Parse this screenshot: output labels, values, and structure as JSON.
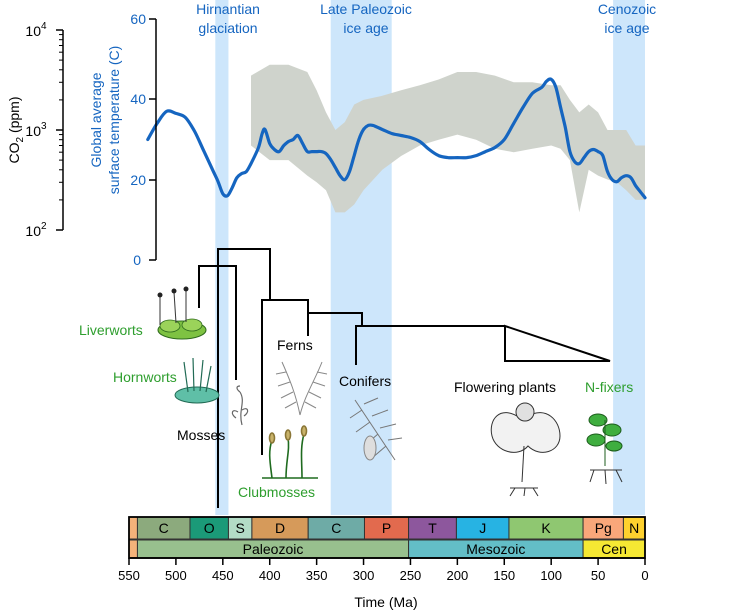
{
  "colors": {
    "temperature": "#1565c0",
    "axis_blue": "#1565c0",
    "co2_band": "#cfd3cc",
    "ice_band": "#cde6fb",
    "bryophyte_label": "#2e9e2e",
    "tree": "#000000"
  },
  "chart_data": [
    {
      "type": "line",
      "title": "",
      "xlabel": "Time (Ma)",
      "xlim": [
        550,
        0
      ],
      "x_ticks": [
        "550",
        "500",
        "450",
        "400",
        "350",
        "300",
        "250",
        "200",
        "150",
        "100",
        "50",
        "0"
      ],
      "grid": false,
      "series": [
        {
          "name": "Global average surface temperature (C)",
          "color": "#1565c0",
          "axis": "right-inner",
          "ylabel": "Global average surface temperature (C)",
          "ylim": [
            0,
            60
          ],
          "y_ticks": [
            "0",
            "20",
            "40",
            "60"
          ],
          "x": [
            530,
            520,
            510,
            500,
            490,
            480,
            470,
            460,
            455,
            450,
            445,
            440,
            435,
            430,
            425,
            420,
            412,
            408,
            405,
            400,
            395,
            390,
            385,
            380,
            375,
            370,
            365,
            360,
            355,
            350,
            345,
            340,
            335,
            330,
            325,
            320,
            315,
            310,
            305,
            300,
            295,
            290,
            280,
            270,
            260,
            250,
            240,
            230,
            220,
            210,
            200,
            190,
            180,
            170,
            160,
            150,
            140,
            130,
            120,
            110,
            105,
            100,
            95,
            90,
            85,
            80,
            75,
            70,
            65,
            60,
            55,
            50,
            45,
            40,
            35,
            30,
            25,
            20,
            15,
            10,
            5,
            0
          ],
          "y": [
            30,
            34,
            37,
            36.5,
            35.5,
            32,
            27,
            22,
            19.5,
            16.5,
            16,
            18,
            20.5,
            21.5,
            22,
            24,
            28,
            31.5,
            32.5,
            29,
            27.5,
            27,
            28.5,
            29.5,
            30,
            31,
            29,
            27,
            27,
            27,
            27,
            26.5,
            25,
            23,
            21,
            20,
            22,
            26,
            30,
            32.5,
            33.5,
            33.5,
            32.5,
            31.5,
            31,
            30.5,
            29.5,
            27.5,
            26,
            25.5,
            25.5,
            25.5,
            26,
            27,
            28,
            30,
            34,
            38,
            41.5,
            43,
            44.5,
            45,
            43,
            38,
            33,
            27,
            24.5,
            24,
            25.5,
            27,
            27.5,
            27,
            26,
            22,
            20,
            19.5,
            20.5,
            21,
            20.5,
            18.5,
            17,
            15.5
          ]
        },
        {
          "name": "CO2 (ppm)",
          "type": "area",
          "color": "#cfd3cc",
          "axis": "left-outer",
          "ylabel": "CO2 (ppm)",
          "scale": "log",
          "ylim": [
            100,
            10000
          ],
          "y_ticks": [
            "10^2",
            "10^3",
            "10^4"
          ],
          "x": [
            420,
            400,
            380,
            360,
            350,
            340,
            330,
            320,
            310,
            300,
            280,
            260,
            240,
            220,
            200,
            180,
            160,
            140,
            120,
            100,
            90,
            80,
            70,
            60,
            50,
            40,
            30,
            20,
            10,
            0
          ],
          "upper": [
            3500,
            4500,
            4500,
            3800,
            2500,
            1500,
            1000,
            1200,
            1800,
            2000,
            2200,
            2500,
            2800,
            3200,
            3800,
            3800,
            3500,
            3000,
            3000,
            2800,
            2800,
            2000,
            1500,
            1800,
            1500,
            1000,
            1000,
            1000,
            700,
            700
          ],
          "lower": [
            700,
            500,
            500,
            350,
            300,
            250,
            150,
            150,
            180,
            250,
            400,
            550,
            700,
            800,
            900,
            800,
            650,
            600,
            650,
            700,
            650,
            500,
            150,
            400,
            350,
            320,
            300,
            250,
            200,
            200
          ]
        }
      ],
      "shaded_regions": [
        {
          "label": "Hirnantian glaciation",
          "from": 458,
          "to": 444
        },
        {
          "label": "Late Paleozoic ice age",
          "from": 335,
          "to": 270
        },
        {
          "label": "Cenozoic ice age",
          "from": 34,
          "to": 0
        }
      ]
    },
    {
      "type": "table",
      "periods": [
        {
          "label": "",
          "from": 550,
          "to": 541,
          "color": "#f4b27a"
        },
        {
          "label": "C",
          "from": 541,
          "to": 485,
          "color": "#8caa7d"
        },
        {
          "label": "O",
          "from": 485,
          "to": 444,
          "color": "#1b9a78"
        },
        {
          "label": "S",
          "from": 444,
          "to": 419,
          "color": "#b3dcc6"
        },
        {
          "label": "D",
          "from": 419,
          "to": 359,
          "color": "#d69a5a"
        },
        {
          "label": "C",
          "from": 359,
          "to": 299,
          "color": "#6eaba6"
        },
        {
          "label": "P",
          "from": 299,
          "to": 252,
          "color": "#e26a4e"
        },
        {
          "label": "T",
          "from": 252,
          "to": 201,
          "color": "#8d579d"
        },
        {
          "label": "J",
          "from": 201,
          "to": 145,
          "color": "#27b3e3"
        },
        {
          "label": "K",
          "from": 145,
          "to": 66,
          "color": "#8fc771"
        },
        {
          "label": "Pg",
          "from": 66,
          "to": 23,
          "color": "#f9a77a"
        },
        {
          "label": "N",
          "from": 23,
          "to": 0,
          "color": "#fed12e"
        }
      ],
      "eras": [
        {
          "label": "",
          "from": 550,
          "to": 541,
          "color": "#f4b27a"
        },
        {
          "label": "Paleozoic",
          "from": 541,
          "to": 252,
          "color": "#98c08e"
        },
        {
          "label": "Mesozoic",
          "from": 252,
          "to": 66,
          "color": "#63bec7"
        },
        {
          "label": "Cen",
          "from": 66,
          "to": 0,
          "color": "#f5e833"
        }
      ]
    }
  ],
  "phylogeny": {
    "taxa": [
      {
        "key": "liverworts",
        "label": "Liverworts",
        "color": "#2e9e2e"
      },
      {
        "key": "hornworts",
        "label": "Hornworts",
        "color": "#2e9e2e"
      },
      {
        "key": "mosses",
        "label": "Mosses",
        "color": "#000000"
      },
      {
        "key": "clubmosses",
        "label": "Clubmosses",
        "color": "#2e9e2e"
      },
      {
        "key": "ferns",
        "label": "Ferns",
        "color": "#000000"
      },
      {
        "key": "conifers",
        "label": "Conifers",
        "color": "#000000"
      },
      {
        "key": "flowering",
        "label": "Flowering plants",
        "color": "#000000"
      },
      {
        "key": "nfixers",
        "label": "N-fixers",
        "color": "#2e9e2e"
      }
    ],
    "icons": [
      "liverwort-icon",
      "hornwort-icon",
      "moss-icon",
      "clubmoss-icon",
      "fern-icon",
      "conifer-icon",
      "flowering-plant-icon",
      "legume-icon"
    ]
  }
}
